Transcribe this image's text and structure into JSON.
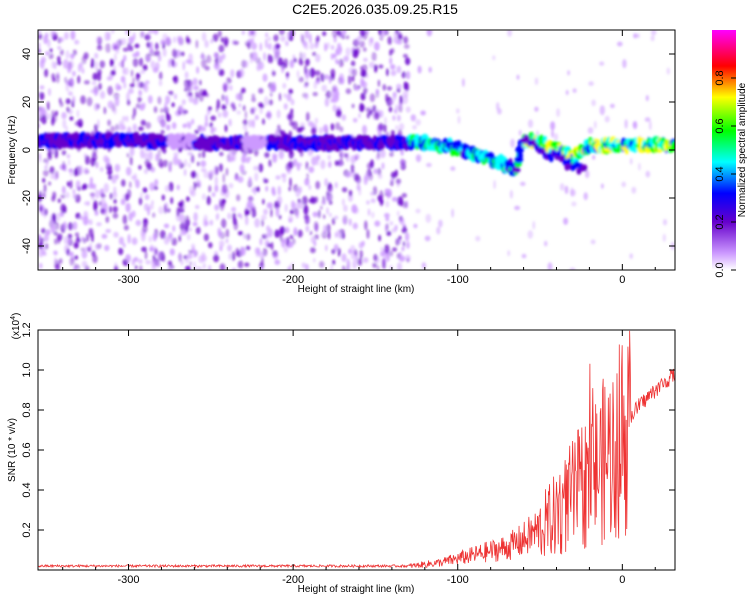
{
  "title": "C2E5.2026.035.09.25.R15",
  "chart_data": [
    {
      "type": "heatmap",
      "title": "C2E5.2026.035.09.25.R15",
      "xlabel": "Height of straight line (km)",
      "ylabel": "Frequency (Hz)",
      "xlim": [
        -355,
        32
      ],
      "ylim": [
        -50,
        50
      ],
      "xticks": [
        -300,
        -200,
        -100,
        0
      ],
      "yticks": [
        -40,
        -20,
        0,
        20,
        40
      ],
      "colorbar": {
        "label": "Normalized spectral amplitude",
        "range": [
          0,
          1
        ],
        "ticks": [
          0.0,
          0.2,
          0.4,
          0.6,
          0.8
        ],
        "tick_labels": [
          "0.0",
          "0.2",
          "0.4",
          "0.6",
          "0.8"
        ],
        "colormap": [
          "#ffffff",
          "#cc99ff",
          "#6600cc",
          "#0000ff",
          "#00ffff",
          "#00ff00",
          "#ffff00",
          "#ff0000",
          "#ff00ff"
        ]
      },
      "ridge": {
        "x": [
          -350,
          -300,
          -250,
          -200,
          -150,
          -120,
          -100,
          -85,
          -75,
          -65,
          -60,
          -50,
          -40,
          -30,
          -20,
          -10,
          0,
          10,
          20,
          30
        ],
        "y": [
          4,
          4,
          3,
          3,
          3,
          3,
          1,
          -3,
          -5,
          -8,
          4,
          3,
          0,
          -3,
          2,
          2,
          2,
          2,
          2,
          2
        ]
      }
    },
    {
      "type": "line",
      "xlabel": "Height of straight line (km)",
      "ylabel": "SNR (10 * v/v)",
      "yscale_label": "(x10",
      "yscale_exp": "4",
      "yscale_close": ")",
      "xlim": [
        -355,
        32
      ],
      "ylim": [
        0,
        1.2
      ],
      "xticks": [
        -300,
        -200,
        -100,
        0
      ],
      "yticks": [
        0.2,
        0.4,
        0.6,
        0.8,
        1.0,
        1.2
      ],
      "tick_labels_y": [
        "0.2",
        "0.4",
        "0.6",
        "0.8",
        "1.0",
        "1.2"
      ],
      "color": "#ee3333",
      "envelope": {
        "x": [
          -355,
          -250,
          -130,
          -110,
          -100,
          -90,
          -80,
          -70,
          -60,
          -50,
          -40,
          -30,
          -25,
          -20,
          -10,
          0,
          10,
          20,
          32
        ],
        "y": [
          0.02,
          0.02,
          0.02,
          0.04,
          0.06,
          0.08,
          0.1,
          0.12,
          0.16,
          0.22,
          0.3,
          0.4,
          0.45,
          0.5,
          0.6,
          0.72,
          0.82,
          0.9,
          0.98
        ]
      }
    }
  ],
  "tick_labels_x": [
    "-300",
    "-200",
    "-100",
    "0"
  ],
  "tick_labels_y_top": [
    "-40",
    "-20",
    "0",
    "20",
    "40"
  ]
}
